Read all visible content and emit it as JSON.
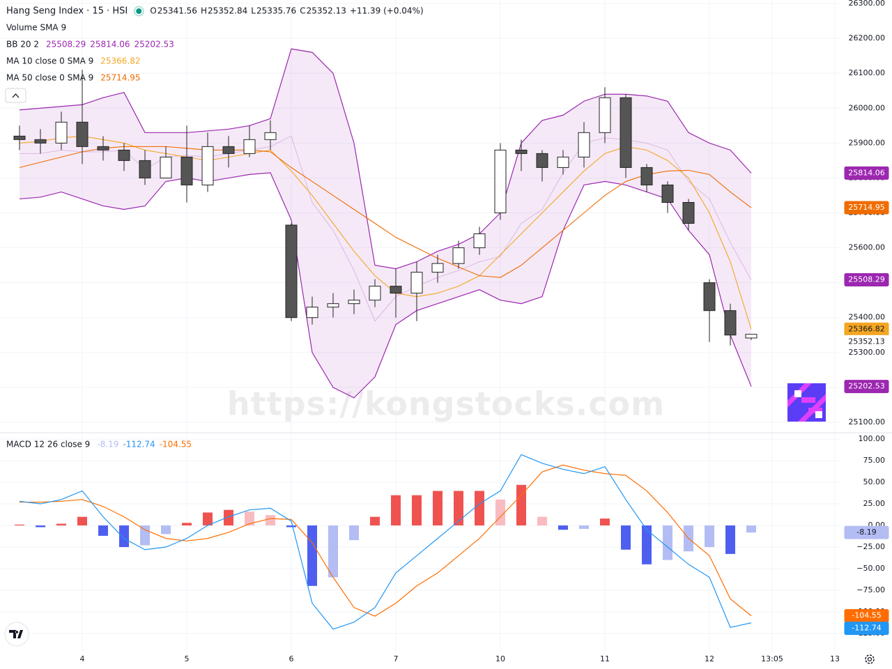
{
  "watermark": "https://kongstocks.com",
  "chart_data": [
    {
      "type": "candlestick",
      "title": "Hang Seng Index · 15 · HSI",
      "ohlc_keys": [
        "O",
        "H",
        "L",
        "C"
      ],
      "change": "+11.39 (+0.04%)",
      "volume_label": "Volume SMA 9",
      "categories": [
        null,
        null,
        null,
        "4",
        null,
        null,
        null,
        null,
        "5",
        null,
        null,
        null,
        null,
        "6",
        null,
        null,
        null,
        null,
        "7",
        null,
        null,
        null,
        null,
        "10",
        null,
        null,
        null,
        null,
        "11",
        null,
        null,
        null,
        null,
        "12",
        null,
        null,
        "13:05",
        null,
        null,
        "13"
      ],
      "open": [
        25920,
        25910,
        25900,
        25960,
        25890,
        25880,
        25850,
        25800,
        25860,
        25780,
        25890,
        25870,
        25910,
        25665,
        25400,
        25430,
        25440,
        25450,
        25490,
        25470,
        25530,
        25555,
        25600,
        25700,
        25880,
        25870,
        25830,
        25860,
        25930,
        26030,
        25830,
        25780,
        25730,
        25500,
        25420,
        25341.56,
        null,
        null,
        null,
        null
      ],
      "high": [
        25950,
        25940,
        25990,
        26110,
        25920,
        25900,
        25880,
        25890,
        25950,
        25930,
        25920,
        25950,
        25965,
        25670,
        25460,
        25470,
        25480,
        25510,
        25540,
        25560,
        25580,
        25620,
        25660,
        25900,
        25910,
        25880,
        25880,
        25960,
        26060,
        26040,
        25840,
        25790,
        25740,
        25510,
        25440,
        25352.84,
        null,
        null,
        null,
        null
      ],
      "low": [
        25880,
        25870,
        25880,
        25840,
        25850,
        25820,
        25780,
        25800,
        25730,
        25760,
        25830,
        25860,
        25880,
        25390,
        25380,
        25400,
        25410,
        25430,
        25400,
        25390,
        25500,
        25540,
        25580,
        25680,
        25820,
        25790,
        25810,
        25830,
        25900,
        25800,
        25760,
        25700,
        25650,
        25330,
        25320,
        25335.76,
        null,
        null,
        null,
        null
      ],
      "close": [
        25910,
        25900,
        25960,
        25890,
        25880,
        25850,
        25800,
        25860,
        25780,
        25890,
        25870,
        25910,
        25930,
        25400,
        25430,
        25440,
        25450,
        25490,
        25470,
        25530,
        25555,
        25600,
        25640,
        25880,
        25870,
        25830,
        25860,
        25930,
        26030,
        25830,
        25780,
        25730,
        25670,
        25420,
        25350,
        25352.13,
        null,
        null,
        null,
        null
      ],
      "up_color": "#ffffff",
      "down_color": "#555555",
      "wick_color": "#222222",
      "bb": {
        "name": "BB 20 2",
        "color": "#9c27b0",
        "fill": "#9c27b0",
        "basis": [
          25870,
          25870,
          25880,
          25875,
          25875,
          25880,
          25825,
          25860,
          25865,
          25860,
          25870,
          25880,
          25890,
          25920,
          25730,
          25650,
          25535,
          25390,
          25460,
          25490,
          25515,
          25535,
          25560,
          25575,
          25670,
          25710,
          25815,
          25900,
          25915,
          25910,
          25900,
          25880,
          25790,
          25740,
          25615,
          25508.29,
          null,
          null,
          null,
          null
        ],
        "upper": [
          25995,
          26000,
          26005,
          26010,
          26030,
          26045,
          25930,
          25930,
          25930,
          25935,
          25940,
          25950,
          25970,
          26170,
          26160,
          26100,
          25900,
          25550,
          25540,
          25560,
          25590,
          25610,
          25640,
          25700,
          25900,
          25965,
          25980,
          26020,
          26040,
          26040,
          26035,
          26020,
          25930,
          25900,
          25880,
          25814.06,
          null,
          null,
          null,
          null
        ],
        "lower": [
          25740,
          25745,
          25760,
          25740,
          25720,
          25710,
          25720,
          25790,
          25800,
          25790,
          25800,
          25810,
          25815,
          25680,
          25300,
          25200,
          25170,
          25230,
          25380,
          25420,
          25440,
          25460,
          25480,
          25450,
          25440,
          25460,
          25650,
          25780,
          25790,
          25780,
          25760,
          25740,
          25650,
          25580,
          25350,
          25202.53,
          null,
          null,
          null,
          null
        ]
      },
      "ma": [
        {
          "name": "MA 10 close 0 SMA 9",
          "color": "#f5a623",
          "values": [
            25900,
            25905,
            25915,
            25920,
            25910,
            25900,
            25880,
            25870,
            25860,
            25850,
            25860,
            25870,
            25880,
            25820,
            25750,
            25670,
            25590,
            25520,
            25470,
            25460,
            25470,
            25490,
            25520,
            25580,
            25640,
            25700,
            25760,
            25820,
            25870,
            25890,
            25880,
            25850,
            25800,
            25700,
            25560,
            25366.82,
            null,
            null,
            null,
            null
          ]
        },
        {
          "name": "MA 50 close 0 SMA 9",
          "color": "#ef6c00",
          "values": [
            25830,
            25845,
            25860,
            25875,
            25885,
            25890,
            25890,
            25890,
            25885,
            25880,
            25880,
            25880,
            25875,
            25830,
            25790,
            25750,
            25710,
            25670,
            25630,
            25600,
            25570,
            25545,
            25520,
            25515,
            25550,
            25600,
            25650,
            25700,
            25750,
            25790,
            25810,
            25820,
            25822,
            25810,
            25760,
            25714.95,
            null,
            null,
            null,
            null
          ]
        }
      ],
      "ylim": [
        25072,
        26310
      ],
      "yticks": [
        {
          "value": 25100,
          "label": "25100.00"
        },
        {
          "value": 25200,
          "label": "25200.00"
        },
        {
          "value": 25300,
          "label": "25300.00"
        },
        {
          "value": 25400,
          "label": "25400.00"
        },
        {
          "value": 25500,
          "label": "25500.00"
        },
        {
          "value": 25600,
          "label": "25600.00"
        },
        {
          "value": 25700,
          "label": "25700.00"
        },
        {
          "value": 25800,
          "label": "25800.00"
        },
        {
          "value": 25900,
          "label": "25900.00"
        },
        {
          "value": 26000,
          "label": "26000.00"
        },
        {
          "value": 26100,
          "label": "26100.00"
        },
        {
          "value": 26200,
          "label": "26200.00"
        },
        {
          "value": 26300,
          "label": "26300.00"
        }
      ],
      "grid": true
    },
    {
      "type": "macd",
      "title": "MACD 12 26 close 9",
      "histogram": [
        1,
        -2,
        2,
        10,
        -12,
        -25,
        -23,
        -10,
        3,
        15,
        18,
        16,
        12,
        -2,
        -70,
        -60,
        -17,
        10,
        35,
        35,
        40,
        40,
        40,
        30,
        47,
        10,
        -5,
        -4,
        8,
        -28,
        -45,
        -40,
        -30,
        -25,
        -33,
        -8.19,
        null,
        null,
        null,
        null
      ],
      "histogram_colors": [
        "#ef5350",
        "#f8bbc0",
        "#4e5ff0",
        "#b3bdf3"
      ],
      "macd": {
        "color": "#2196f3",
        "values": [
          28,
          25,
          30,
          40,
          10,
          -15,
          -28,
          -25,
          -15,
          0,
          10,
          18,
          20,
          5,
          -90,
          -120,
          -112,
          -95,
          -55,
          -35,
          -15,
          5,
          25,
          40,
          82,
          72,
          65,
          60,
          68,
          30,
          -5,
          -25,
          -45,
          -60,
          -118,
          -112.74,
          null,
          null,
          null,
          null
        ]
      },
      "signal": {
        "color": "#ff6d00",
        "values": [
          27,
          27,
          28,
          30,
          22,
          10,
          -5,
          -15,
          -18,
          -15,
          -8,
          2,
          8,
          7,
          -20,
          -60,
          -95,
          -105,
          -90,
          -70,
          -55,
          -35,
          -15,
          10,
          35,
          62,
          70,
          64,
          60,
          58,
          40,
          15,
          -15,
          -35,
          -85,
          -104.55,
          null,
          null,
          null,
          null
        ]
      },
      "ylim": [
        -146,
        106.5
      ],
      "yticks": [
        {
          "value": 100,
          "label": "100.00"
        },
        {
          "value": 75,
          "label": "75.00"
        },
        {
          "value": 50,
          "label": "50.00"
        },
        {
          "value": 25,
          "label": "25.00"
        },
        {
          "value": 0,
          "label": "0.00"
        },
        {
          "value": -25,
          "label": "−25.00"
        },
        {
          "value": -50,
          "label": "−50.00"
        },
        {
          "value": -75,
          "label": "−75.00"
        },
        {
          "value": -100,
          "label": "−100.00"
        },
        {
          "value": -125,
          "label": "−125.00"
        }
      ],
      "grid": true
    }
  ]
}
